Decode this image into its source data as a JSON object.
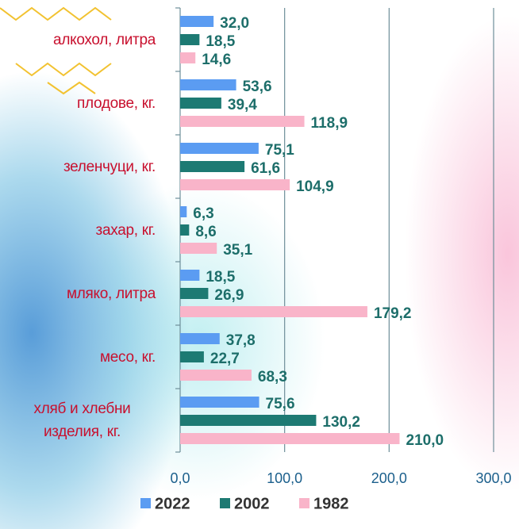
{
  "chart_data": {
    "type": "hbar",
    "categories": [
      "алкохол, литра",
      "плодове, кг.",
      "зеленчуци, кг.",
      "захар, кг.",
      "мляко, литра",
      "месо, кг.",
      "хляб и хлебни изделия, кг."
    ],
    "series": [
      {
        "name": "2022",
        "color": "#5b9cf2",
        "values": [
          32.0,
          53.6,
          75.1,
          6.3,
          18.5,
          37.8,
          75.6
        ],
        "value_labels": [
          "32,0",
          "53,6",
          "75,1",
          "6,3",
          "18,5",
          "37,8",
          "75,6"
        ]
      },
      {
        "name": "2002",
        "color": "#1d7a73",
        "values": [
          18.5,
          39.4,
          61.6,
          8.6,
          26.9,
          22.7,
          130.2
        ],
        "value_labels": [
          "18,5",
          "39,4",
          "61,6",
          "8,6",
          "26,9",
          "22,7",
          "130,2"
        ]
      },
      {
        "name": "1982",
        "color": "#f9b4c9",
        "values": [
          14.6,
          118.9,
          104.9,
          35.1,
          179.2,
          68.3,
          210.0
        ],
        "value_labels": [
          "14,6",
          "118,9",
          "104,9",
          "35,1",
          "179,2",
          "68,3",
          "210,0"
        ]
      }
    ],
    "xlim": [
      0,
      300
    ],
    "xticks": [
      {
        "value": 0,
        "label": "0,0"
      },
      {
        "value": 100,
        "label": "100,0"
      },
      {
        "value": 200,
        "label": "200,0"
      },
      {
        "value": 300,
        "label": "300,0"
      }
    ],
    "grid": true,
    "legend": "bottom"
  }
}
